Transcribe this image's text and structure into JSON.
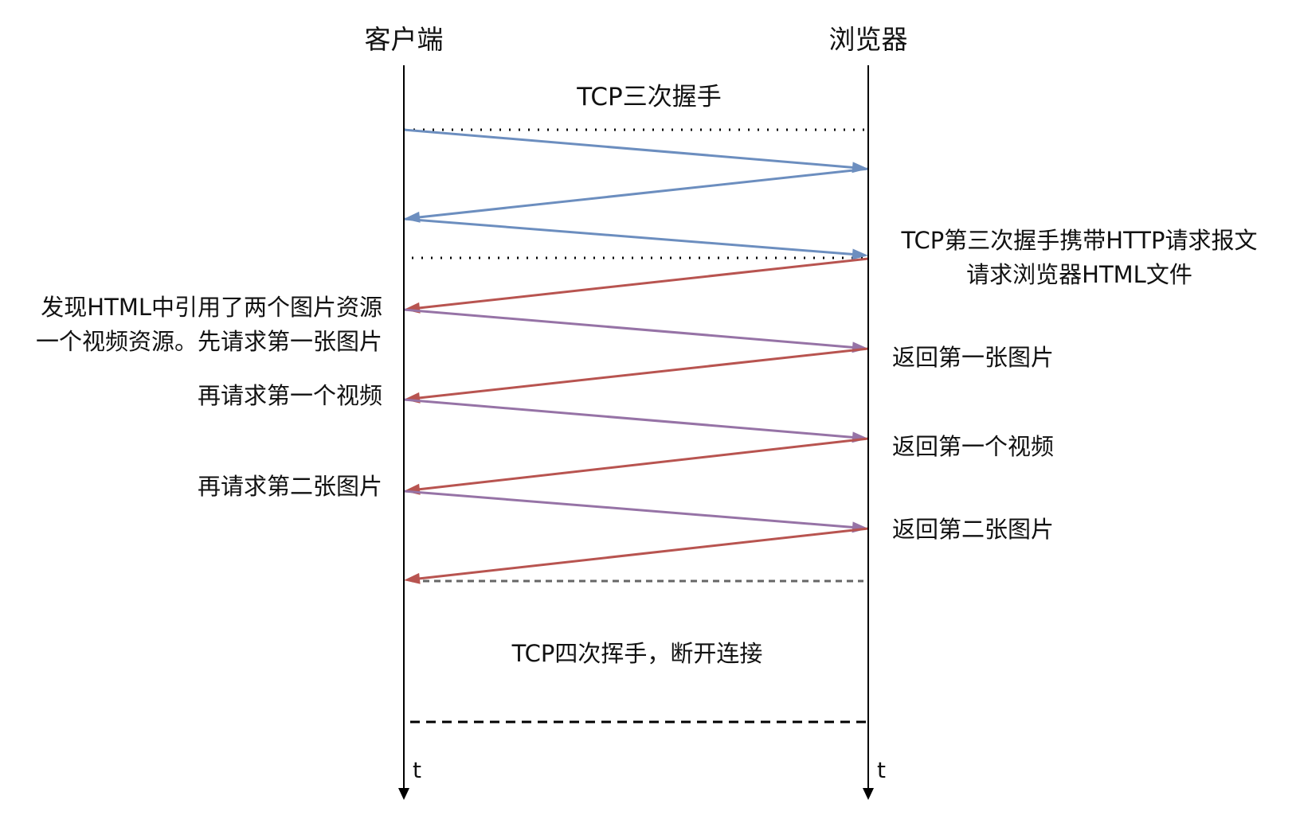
{
  "actors": {
    "left": "客户端",
    "right": "浏览器",
    "time_label": "t"
  },
  "handshake": {
    "title": "TCP三次握手",
    "third_note_line1": "TCP第三次握手携带HTTP请求报文",
    "third_note_line2": "请求浏览器HTML文件"
  },
  "client_notes": {
    "first_line1": "发现HTML中引用了两个图片资源",
    "first_line2": "一个视频资源。先请求第一张图片",
    "second": "再请求第一个视频",
    "third": "再请求第二张图片"
  },
  "server_notes": {
    "first": "返回第一张图片",
    "second": "返回第一个视频",
    "third": "返回第二张图片"
  },
  "teardown": {
    "title": "TCP四次挥手，断开连接"
  },
  "colors": {
    "lifeline": "#000000",
    "handshake_arrow": "#6c8ebf",
    "response_arrow": "#b85450",
    "request_arrow": "#9673a6",
    "dotted_divider": "#000000",
    "gray_dashed": "#666666"
  }
}
